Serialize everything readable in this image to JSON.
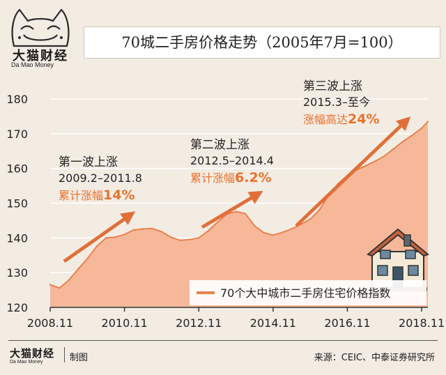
{
  "brand": {
    "name_cn": "大猫财经",
    "name_en": "Da Mao Money"
  },
  "chart_data": {
    "type": "area",
    "title": "70城二手房价格走势（2005年7月=100）",
    "x_tick_labels": [
      "2008.11",
      "2010.11",
      "2012.11",
      "2014.11",
      "2016.11",
      "2018.11"
    ],
    "ylim": [
      120,
      180
    ],
    "y_ticks": [
      120,
      130,
      140,
      150,
      160,
      170,
      180
    ],
    "grid": true,
    "legend_position": "bottom-right",
    "colors": {
      "area": "#f7b89a",
      "line": "#e8824e",
      "arrow": "#e07038",
      "highlight": "#e8722e"
    },
    "series": [
      {
        "name": "70个大中城市二手房住宅价格指数",
        "x": [
          "2008.11",
          "2009.02",
          "2009.05",
          "2009.08",
          "2009.11",
          "2010.02",
          "2010.05",
          "2010.08",
          "2010.11",
          "2011.02",
          "2011.05",
          "2011.08",
          "2011.11",
          "2012.02",
          "2012.05",
          "2012.08",
          "2012.11",
          "2013.02",
          "2013.05",
          "2013.08",
          "2013.11",
          "2014.02",
          "2014.05",
          "2014.08",
          "2014.11",
          "2015.02",
          "2015.05",
          "2015.08",
          "2015.11",
          "2016.02",
          "2016.05",
          "2016.08",
          "2016.11",
          "2017.02",
          "2017.05",
          "2017.08",
          "2017.11",
          "2018.02",
          "2018.05",
          "2018.08",
          "2018.11",
          "2019.01"
        ],
        "values": [
          126.5,
          125.6,
          127.8,
          131.0,
          134.0,
          137.5,
          140.0,
          140.2,
          141.0,
          142.3,
          142.6,
          142.7,
          141.8,
          140.2,
          139.3,
          139.5,
          140.0,
          142.0,
          144.5,
          146.8,
          147.6,
          147.0,
          143.5,
          141.5,
          140.8,
          141.6,
          142.6,
          143.9,
          145.4,
          148.1,
          152.4,
          155.6,
          158.0,
          159.6,
          160.8,
          162.1,
          163.6,
          165.7,
          167.8,
          169.6,
          171.6,
          173.5
        ]
      }
    ],
    "annotations": [
      {
        "title": "第一波上涨",
        "period": "2009.2–2011.8",
        "change_prefix": "累计涨幅",
        "change": "14%"
      },
      {
        "title": "第二波上涨",
        "period": "2012.5–2014.4",
        "change_prefix": "累计涨幅",
        "change": "6.2%"
      },
      {
        "title": "第三波上涨",
        "period": "2015.3–至今",
        "change_prefix": "涨幅高达",
        "change": "24%"
      }
    ]
  },
  "footer": {
    "made_by": "制图",
    "source": "来源：CEIC、中泰证券研究所"
  }
}
